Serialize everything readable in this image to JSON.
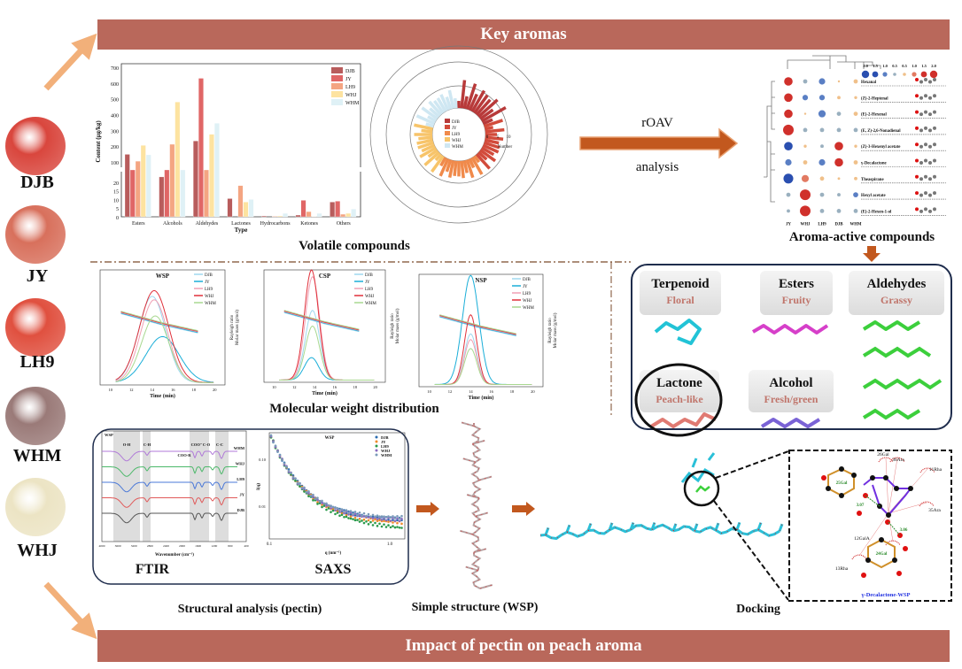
{
  "banners": {
    "top": "Key aromas",
    "bottom": "Impact of pectin on peach aroma"
  },
  "peaches": [
    {
      "label": "DJB",
      "color": "#d9463d"
    },
    {
      "label": "JY",
      "color": "#d8705c"
    },
    {
      "label": "LH9",
      "color": "#e0503f"
    },
    {
      "label": "WHM",
      "color": "#9a7a78"
    },
    {
      "label": "WHJ",
      "color": "#ece4c4"
    }
  ],
  "samples": [
    "DJB",
    "JY",
    "LH9",
    "WHJ",
    "WHM"
  ],
  "sample_colors": {
    "DJB": "#b85c5c",
    "JY": "#e06666",
    "LH9": "#f4a582",
    "WHJ": "#fde3a0",
    "WHM": "#dff1f6"
  },
  "volatile": {
    "caption": "Volatile compounds",
    "chart_data": {
      "type": "bar",
      "xlabel": "Type",
      "ylabel": "Content (μg/kg)",
      "categories": [
        "Esters",
        "Alcohols",
        "Aldehydes",
        "Lactones",
        "Hydrocarbons",
        "Ketones",
        "Others"
      ],
      "upper_ticks": [
        "100",
        "200",
        "300",
        "400",
        "500",
        "600",
        "700"
      ],
      "lower_ticks": [
        "0",
        "5",
        "10",
        "15",
        "20"
      ],
      "axis_break": [
        25,
        100
      ],
      "series": [
        {
          "name": "DJB",
          "values": [
            148,
            23,
            233,
            10.5,
            0.5,
            1,
            8.5
          ]
        },
        {
          "name": "JY",
          "values": [
            75,
            85,
            630,
            0,
            0,
            9.5,
            9
          ]
        },
        {
          "name": "LH9",
          "values": [
            105,
            212,
            85,
            18,
            0.3,
            3,
            1.5
          ]
        },
        {
          "name": "WHJ",
          "values": [
            205,
            480,
            275,
            8.5,
            0.5,
            0.2,
            2
          ]
        },
        {
          "name": "WHM",
          "values": [
            145,
            80,
            345,
            10,
            2,
            2,
            4.5
          ]
        }
      ]
    },
    "radial": {
      "scale_label": "Number",
      "scale_ticks": [
        "0",
        "5",
        "10"
      ]
    }
  },
  "roav": {
    "top": "rOAV",
    "bottom": "analysis"
  },
  "aroma_active": {
    "caption": "Aroma-active compounds",
    "legend_ticks": [
      "2.0",
      "1.5",
      "1.0",
      "0.5",
      "0.5",
      "1.0",
      "1.5",
      "2.0"
    ],
    "columns": [
      "JY",
      "WHJ",
      "LH9",
      "DJB",
      "WHM"
    ],
    "rows": [
      {
        "name": "Hexanal",
        "values": [
          1.5,
          -0.5,
          -1.0,
          0,
          0.5
        ]
      },
      {
        "name": "(Z)-2-Heptenal",
        "values": [
          1.5,
          -0.8,
          -0.8,
          0.3,
          0.2
        ]
      },
      {
        "name": "(E)-2-Hexenal",
        "values": [
          1.5,
          0,
          -1.2,
          -0.5,
          0.5
        ]
      },
      {
        "name": "(E, Z)-2,6-Nonadienal",
        "values": [
          2.0,
          -0.5,
          -0.5,
          -0.5,
          -0.5
        ]
      },
      {
        "name": "(Z)-3-Hexenyl acetate",
        "values": [
          -1.5,
          0.2,
          -0.3,
          1.5,
          0.2
        ]
      },
      {
        "name": "γ-Decalactone",
        "values": [
          -1.0,
          0.5,
          -1.0,
          1.5,
          0.5
        ]
      },
      {
        "name": "Theaspirane",
        "values": [
          -1.8,
          1.2,
          0.5,
          0.1,
          0.3
        ]
      },
      {
        "name": "Hexyl acetate",
        "values": [
          -0.5,
          2.0,
          -0.5,
          -0.3,
          -0.7
        ]
      },
      {
        "name": "(E)-2-Hexen-1-ol",
        "values": [
          -0.3,
          2.0,
          -0.5,
          -0.5,
          -0.5
        ]
      }
    ]
  },
  "mw": {
    "caption": "Molecular weight distribution",
    "xlabel": "Time (min)",
    "ylabel_left": "Molar mass (g/mol)",
    "ylabel_right": "Rayleigh ratio",
    "panels": [
      "WSP",
      "CSP",
      "NSP"
    ],
    "x_ticks": [
      "10",
      "12",
      "14",
      "16",
      "18",
      "20"
    ]
  },
  "aroma_classes": [
    {
      "name": "Terpenoid",
      "note": "Floral",
      "mol_color": "#22c3d6"
    },
    {
      "name": "Esters",
      "note": "Fruity",
      "mol_color": "#d63fc9"
    },
    {
      "name": "Aldehydes",
      "note": "Grassy",
      "mol_color": "#3ccf3c"
    },
    {
      "name": "Lactone",
      "note": "Peach-like",
      "mol_color": "#e07a72"
    },
    {
      "name": "Alcohol",
      "note": "Fresh/green",
      "mol_color": "#7a63d6"
    }
  ],
  "note_color": "#c0756b",
  "structural": {
    "caption": "Structural analysis (pectin)",
    "ftir": {
      "label": "FTIR",
      "panel": "WSP",
      "xlabel": "Wavenumber (cm⁻¹)",
      "bands": [
        "O-H",
        "C-H",
        "COO-R",
        "COO⁻",
        "C-O",
        "C-C"
      ],
      "traces": [
        "WHM",
        "WHJ",
        "LH9",
        "JY",
        "DJB"
      ],
      "x_ticks": [
        "4000",
        "3600",
        "3200",
        "2800",
        "2400",
        "2000",
        "1600",
        "1200",
        "800",
        "400"
      ]
    },
    "saxs": {
      "label": "SAXS",
      "panel": "WSP",
      "xlabel": "q (nm⁻¹)",
      "ylabel": "I(q)",
      "x_ticks": [
        "0.1",
        "1.0"
      ],
      "y_ticks": [
        "0.10",
        "0.01"
      ]
    }
  },
  "simple_structure": {
    "caption": "Simple structure (WSP)"
  },
  "docking": {
    "caption": "Docking",
    "title": "γ-Decalactone-WSP",
    "residues": [
      "26Gal",
      "36Ara",
      "11Rha",
      "35Ara",
      "12GalA",
      "13Rha"
    ],
    "rings": [
      "25Gal",
      "24Gal"
    ],
    "distances": [
      "3.07",
      "3.06"
    ]
  }
}
